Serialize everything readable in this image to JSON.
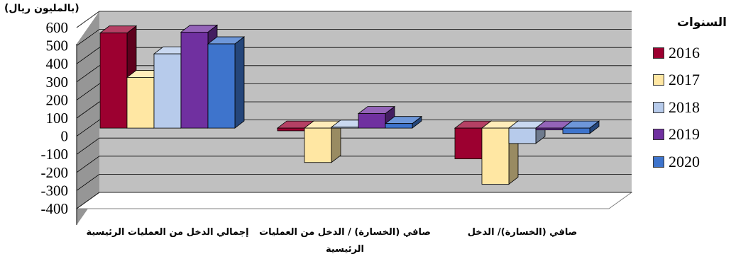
{
  "unit_label": "(بالمليون ريال)",
  "legend_title": "السنوات",
  "colors": {
    "2016": "#9c0030",
    "2017": "#ffe7a3",
    "2018": "#b7cbeb",
    "2019": "#7030a0",
    "2020": "#3e74cc"
  },
  "chart_data": {
    "type": "bar",
    "categories": [
      "إجمالي الدخل من العمليات الرئيسية",
      "صافي (الخسارة) / الدخل من العمليات الرئيسية",
      "صافي (الخسارة)/ الدخل"
    ],
    "category_label_lines": [
      [
        "إجمالي الدخل من العمليات الرئيسية"
      ],
      [
        "صافي (الخسارة) / الدخل من العمليات",
        "الرئيسية"
      ],
      [
        "صافي (الخسارة)/ الدخل"
      ]
    ],
    "series": [
      {
        "name": "2016",
        "values": [
          525,
          -15,
          -170
        ]
      },
      {
        "name": "2017",
        "values": [
          280,
          -190,
          -310
        ]
      },
      {
        "name": "2018",
        "values": [
          410,
          5,
          -85
        ]
      },
      {
        "name": "2019",
        "values": [
          530,
          80,
          -10
        ]
      },
      {
        "name": "2020",
        "values": [
          465,
          25,
          -30
        ]
      }
    ],
    "y_ticks": [
      "600",
      "500",
      "400",
      "300",
      "200",
      "100",
      "0",
      "-100",
      "-200",
      "-300",
      "-400"
    ],
    "ylim": [
      -400,
      600
    ],
    "grid": true,
    "legend_position": "right",
    "three_d": true
  }
}
